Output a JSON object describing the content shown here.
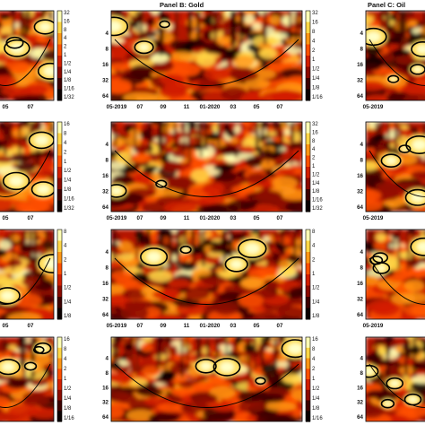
{
  "figure": {
    "panel_titles": [
      "",
      "Panel B: Gold",
      "Panel C: Oil"
    ]
  },
  "chart_data": {
    "type": "heatmap",
    "description_scale": "wavelet power spectrum grid",
    "period_ticks": [
      "4",
      "8",
      "16",
      "32",
      "64"
    ],
    "date_ticks": [
      "05-2019",
      "07",
      "09",
      "11",
      "01-2020",
      "03",
      "05",
      "07"
    ],
    "colormap": [
      "#0a0000",
      "#3c0000",
      "#8c0a00",
      "#d21e00",
      "#ff5000",
      "#ff9614",
      "#ffd746",
      "#ffffb4"
    ],
    "contour_color": "#000000",
    "rows": [
      {
        "colorbars": [
          [
            "32",
            "16",
            "8",
            "4",
            "2",
            "1",
            "1/2",
            "1/4",
            "1/8",
            "1/16",
            "1/32"
          ],
          [
            "32",
            "16",
            "8",
            "4",
            "2",
            "1",
            "1/2",
            "1/4",
            "1/8",
            "1/16"
          ],
          []
        ]
      },
      {
        "colorbars": [
          [
            "16",
            "8",
            "4",
            "2",
            "1",
            "1/2",
            "1/4",
            "1/8",
            "1/16",
            "1/32"
          ],
          [
            "32",
            "16",
            "8",
            "4",
            "2",
            "1",
            "1/2",
            "1/4",
            "1/8",
            "1/16",
            "1/32"
          ],
          []
        ]
      },
      {
        "colorbars": [
          [
            "8",
            "4",
            "2",
            "1",
            "1/2",
            "1/4",
            "1/8"
          ],
          [
            "8",
            "4",
            "2",
            "1",
            "1/2",
            "1/4",
            "1/8"
          ],
          []
        ]
      },
      {
        "colorbars": [
          [
            "16",
            "8",
            "4",
            "2",
            "1",
            "1/2",
            "1/4",
            "1/8",
            "1/16"
          ],
          [
            "16",
            "8",
            "4",
            "2",
            "1",
            "1/2",
            "1/4",
            "1/8",
            "1/16"
          ],
          []
        ]
      }
    ],
    "partial_left_date_ticks": [
      "05",
      "07"
    ]
  }
}
